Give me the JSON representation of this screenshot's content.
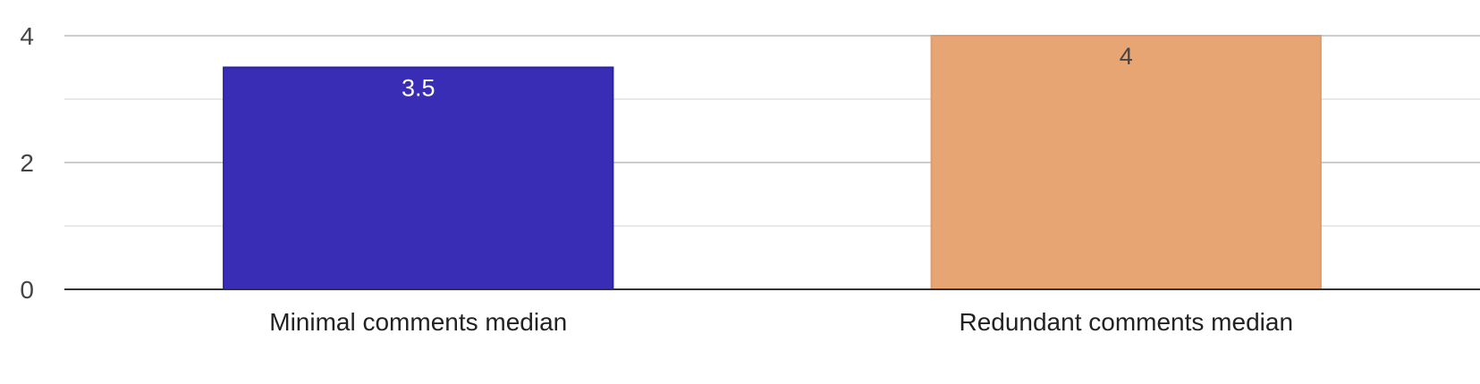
{
  "chart_data": {
    "type": "bar",
    "title": "",
    "xlabel": "",
    "ylabel": "",
    "categories": [
      "Minimal comments median",
      "Redundant comments median"
    ],
    "values": [
      3.5,
      4
    ],
    "data_labels": [
      "3.5",
      "4"
    ],
    "ylim": [
      0,
      4
    ],
    "y_ticks": [
      0,
      2,
      4
    ],
    "y_tick_labels": [
      "0",
      "2",
      "4"
    ],
    "minor_gridlines": [
      1,
      3
    ],
    "grid": true,
    "legend": "none",
    "colors": {
      "bars": [
        "#3a2db5",
        "#e8a574"
      ],
      "bar_borders": [
        "#2a22a8",
        "#e39a66"
      ],
      "data_labels": [
        "#ffffff",
        "#444444"
      ],
      "major_grid": "#cccccc",
      "minor_grid": "#e8e8e8",
      "baseline": "#333333"
    }
  }
}
